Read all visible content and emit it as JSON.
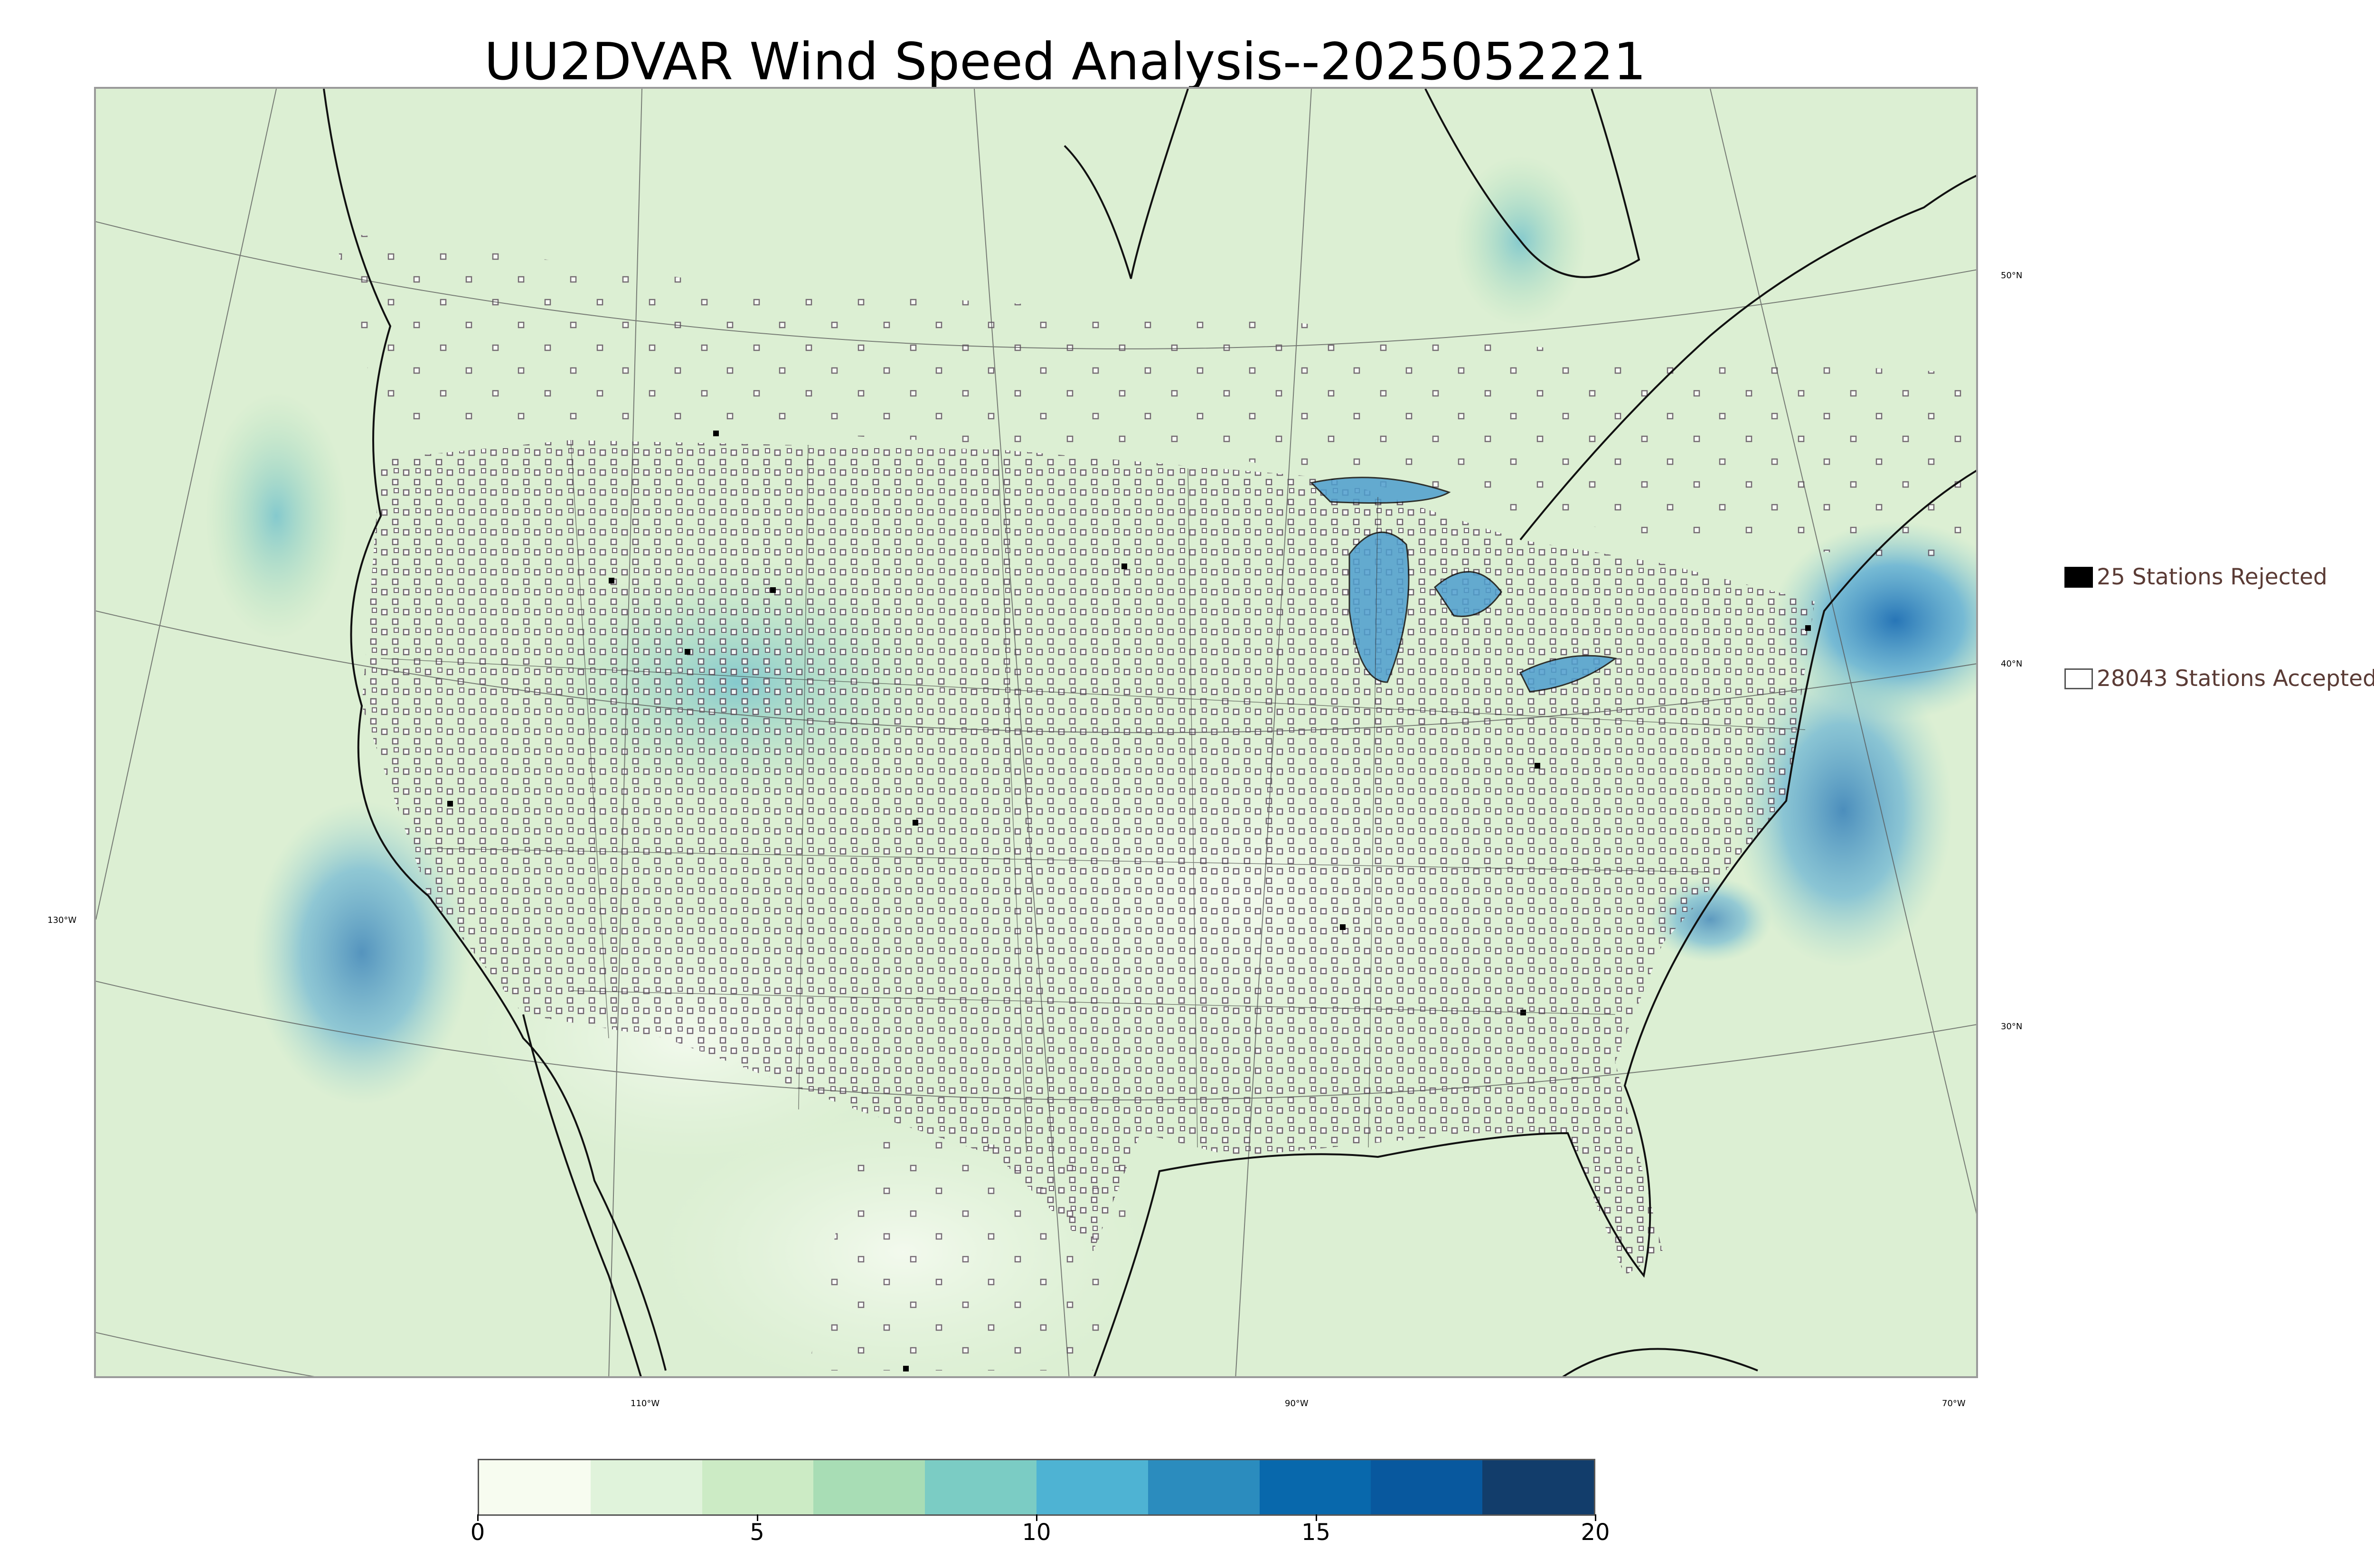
{
  "title": "UU2DVAR Wind Speed Analysis--2025052221",
  "legend": {
    "rejected_label": "25 Stations Rejected",
    "accepted_label": "28043 Stations Accepted",
    "rejected_color": "#000000",
    "accepted_color": "#ffffff"
  },
  "grid_labels": {
    "lat_50": "50°N",
    "lat_40": "40°N",
    "lat_30": "30°N",
    "lon_130": "130°W",
    "lon_110": "110°W",
    "lon_90": "90°W",
    "lon_70": "70°W"
  },
  "colorbar": {
    "min": 0,
    "max": 20,
    "tick_labels": [
      "0",
      "5",
      "10",
      "15",
      "20"
    ],
    "colors": [
      "#f7fcf0",
      "#e0f3db",
      "#ccebc5",
      "#a8ddb5",
      "#7bccc4",
      "#4eb3d3",
      "#2b8cbe",
      "#0868ac",
      "#08589e",
      "#123d6b"
    ]
  },
  "map": {
    "background_color": "#dff0d6",
    "high_wind_color": "#2f7fbf",
    "coastline_color": "#000000"
  }
}
